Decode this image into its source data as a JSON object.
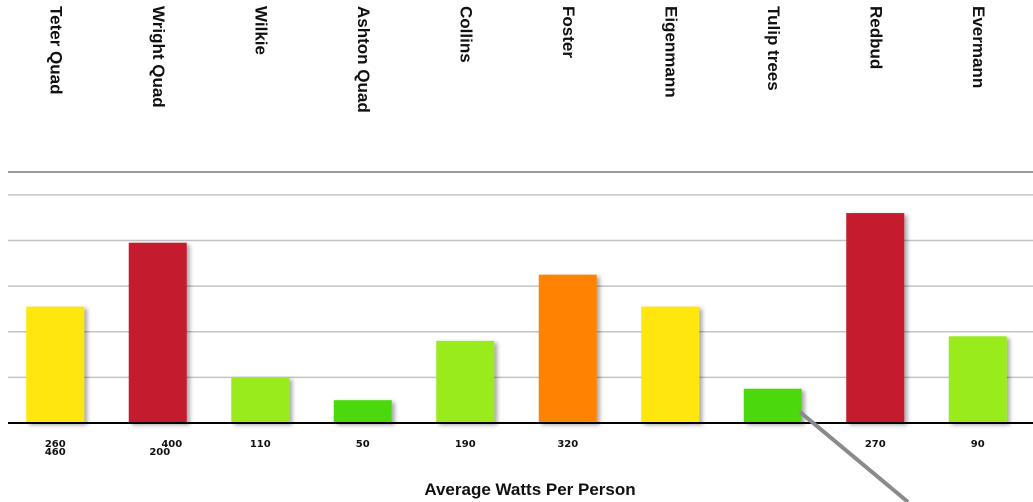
{
  "chart_data": {
    "type": "bar",
    "xlabel": "Average Watts Per Person",
    "ylim": [
      0,
      5.5
    ],
    "grid": true,
    "categories": [
      "Teter Quad",
      "Wright Quad",
      "Wilkie",
      "Ashton Quad",
      "Collins",
      "Foster",
      "Eigenmann",
      "Tulip trees",
      "Redbud",
      "Evermann"
    ],
    "values": [
      2.55,
      3.95,
      1.0,
      0.5,
      1.8,
      3.25,
      2.55,
      0.75,
      4.6,
      1.9
    ],
    "colors": [
      "#ffe60a",
      "#c41a2e",
      "#9aeb1e",
      "#4cd80a",
      "#9aeb1e",
      "#ff8200",
      "#ffe60a",
      "#4cd80a",
      "#c41a2e",
      "#9aeb1e"
    ],
    "tick_labels": [
      {
        "top": "260",
        "bottom": "460"
      },
      {
        "top": "400",
        "bottom": "200"
      },
      {
        "top": "110",
        "bottom": ""
      },
      {
        "top": "50",
        "bottom": ""
      },
      {
        "top": "190",
        "bottom": ""
      },
      {
        "top": "320",
        "bottom": ""
      },
      {
        "top": "",
        "bottom": ""
      },
      {
        "top": "",
        "bottom": ""
      },
      {
        "top": "270",
        "bottom": ""
      },
      {
        "top": "90",
        "bottom": ""
      }
    ]
  }
}
